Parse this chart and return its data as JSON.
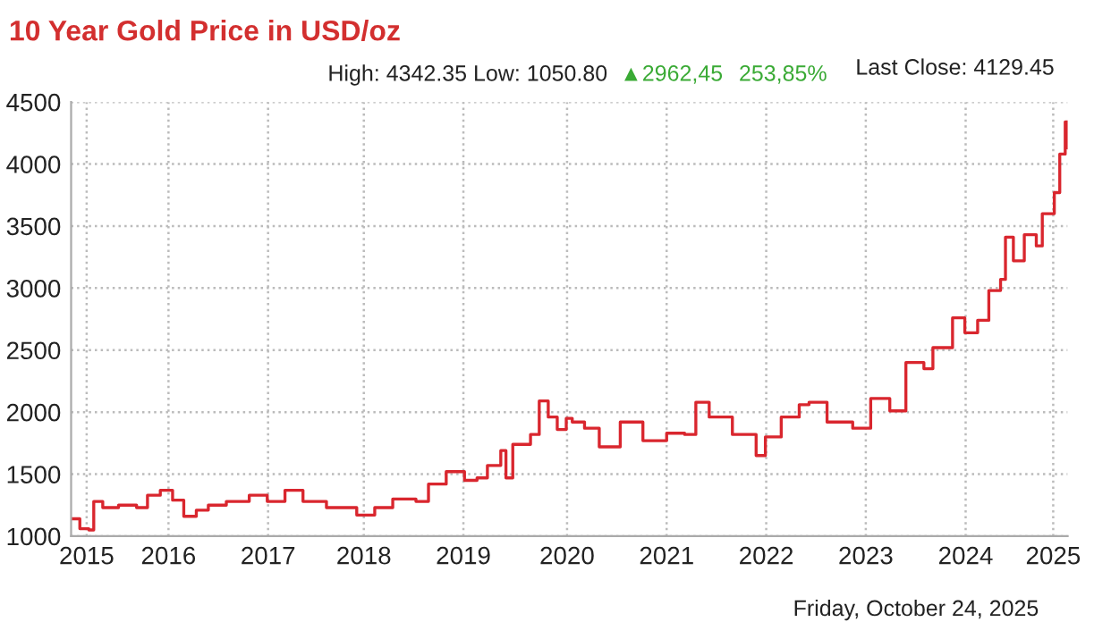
{
  "chart_data": {
    "type": "step",
    "title": "10 Year Gold Price in USD/oz",
    "annotations": [
      "High: 4342.35 Low: 1050.80",
      "▲2962,45",
      "253,85%",
      "Last Close: 4129.45",
      "Friday, October 24, 2025"
    ],
    "x": [
      "2015-10-24",
      "2015-11-25",
      "2015-12-28",
      "2016-01-15",
      "2016-02-17",
      "2016-04-15",
      "2016-06-20",
      "2016-07-30",
      "2016-09-15",
      "2016-10-30",
      "2016-12-10",
      "2017-01-25",
      "2017-03-10",
      "2017-05-15",
      "2017-08-07",
      "2017-10-12",
      "2017-12-16",
      "2018-02-20",
      "2018-05-17",
      "2018-09-05",
      "2018-11-10",
      "2019-01-15",
      "2019-04-10",
      "2019-05-26",
      "2019-07-30",
      "2019-10-05",
      "2019-11-20",
      "2019-12-28",
      "2020-02-15",
      "2020-03-05",
      "2020-03-30",
      "2020-06-03",
      "2020-07-05",
      "2020-08-07",
      "2020-09-09",
      "2020-10-12",
      "2020-11-03",
      "2020-12-18",
      "2021-02-10",
      "2021-04-28",
      "2021-07-20",
      "2021-10-15",
      "2021-12-20",
      "2022-01-30",
      "2022-03-20",
      "2022-06-13",
      "2022-09-08",
      "2022-10-12",
      "2022-12-09",
      "2023-02-13",
      "2023-03-21",
      "2023-05-26",
      "2023-08-28",
      "2023-11-02",
      "2024-01-11",
      "2024-03-10",
      "2024-05-15",
      "2024-06-17",
      "2024-08-28",
      "2024-10-12",
      "2024-11-28",
      "2025-01-08",
      "2025-02-20",
      "2025-03-10",
      "2025-04-08",
      "2025-05-18",
      "2025-07-01",
      "2025-07-23",
      "2025-09-05",
      "2025-09-25",
      "2025-10-15",
      "2025-10-24"
    ],
    "series": [
      {
        "color": "#d9262e",
        "values": [
          1140,
          1060,
          1050,
          1280,
          1230,
          1250,
          1230,
          1330,
          1370,
          1290,
          1160,
          1210,
          1250,
          1280,
          1330,
          1280,
          1370,
          1280,
          1230,
          1170,
          1230,
          1300,
          1280,
          1420,
          1520,
          1450,
          1470,
          1570,
          1690,
          1470,
          1740,
          1820,
          2090,
          1960,
          1860,
          1950,
          1920,
          1870,
          1720,
          1920,
          1770,
          1830,
          1820,
          2080,
          1960,
          1820,
          1650,
          1800,
          1960,
          2060,
          2080,
          1920,
          1870,
          2110,
          2010,
          2400,
          2350,
          2520,
          2760,
          2640,
          2740,
          2980,
          3070,
          3410,
          3220,
          3430,
          3340,
          3600,
          3770,
          4080,
          4340,
          4130
        ]
      }
    ],
    "xlim": [
      "2015-10-24",
      "2025-10-24"
    ],
    "xticks": [
      {
        "value": "2015-12-20",
        "label": "2015"
      },
      {
        "value": "2016-10-15",
        "label": "2016"
      },
      {
        "value": "2017-10-15",
        "label": "2017"
      },
      {
        "value": "2018-10-01",
        "label": "2018"
      },
      {
        "value": "2019-10-01",
        "label": "2019"
      },
      {
        "value": "2020-10-15",
        "label": "2020"
      },
      {
        "value": "2021-10-15",
        "label": "2021"
      },
      {
        "value": "2022-10-15",
        "label": "2022"
      },
      {
        "value": "2023-10-15",
        "label": "2023"
      },
      {
        "value": "2024-10-15",
        "label": "2024"
      },
      {
        "value": "2025-09-01",
        "label": "2025"
      }
    ],
    "ylim": [
      1000,
      4500
    ],
    "yticks": [
      1000,
      1500,
      2000,
      2500,
      3000,
      3500,
      4000,
      4500
    ],
    "grid": true,
    "legend": false,
    "marker": "none",
    "line_style": "solid"
  }
}
